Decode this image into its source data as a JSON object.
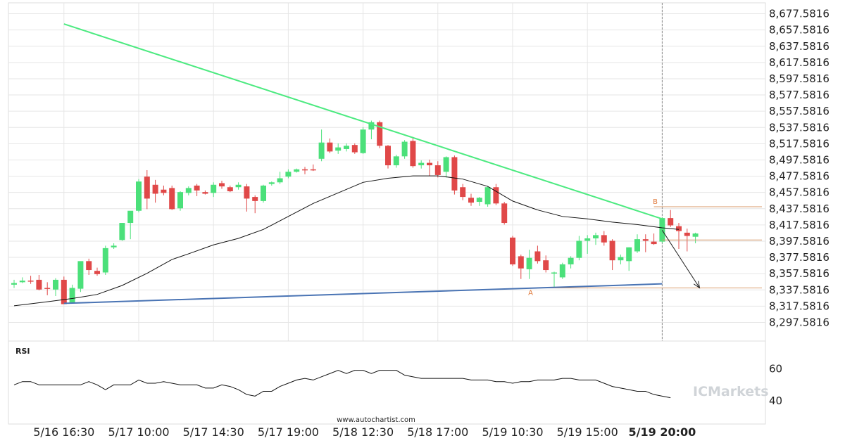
{
  "chart_data": {
    "type": "candlestick",
    "title": "",
    "watermark": "www.autochartist.com",
    "brand": "ICMarkets",
    "ylim": [
      8287.5816,
      8687.5816
    ],
    "y_ticks": [
      "8,677.5816",
      "8,657.5816",
      "8,637.5816",
      "8,617.5816",
      "8,597.5816",
      "8,577.5816",
      "8,557.5816",
      "8,537.5816",
      "8,517.5816",
      "8,497.5816",
      "8,477.5816",
      "8,457.5816",
      "8,437.5816",
      "8,417.5816",
      "8,397.5816",
      "8,377.5816",
      "8,357.5816",
      "8,337.5816",
      "8,317.5816",
      "8,297.5816"
    ],
    "y_tick_values": [
      8677.5816,
      8657.5816,
      8637.5816,
      8617.5816,
      8597.5816,
      8577.5816,
      8557.5816,
      8537.5816,
      8517.5816,
      8497.5816,
      8477.5816,
      8457.5816,
      8437.5816,
      8417.5816,
      8397.5816,
      8377.5816,
      8357.5816,
      8337.5816,
      8317.5816,
      8297.5816
    ],
    "x_ticks": [
      {
        "label": "5/16 16:30",
        "index": 6,
        "bold": false
      },
      {
        "label": "5/17 10:00",
        "index": 15,
        "bold": false
      },
      {
        "label": "5/17 14:30",
        "index": 24,
        "bold": false
      },
      {
        "label": "5/17 19:00",
        "index": 33,
        "bold": false
      },
      {
        "label": "5/18 12:30",
        "index": 42,
        "bold": false
      },
      {
        "label": "5/18 17:00",
        "index": 51,
        "bold": false
      },
      {
        "label": "5/19 10:30",
        "index": 60,
        "bold": false
      },
      {
        "label": "5/19 15:00",
        "index": 69,
        "bold": false
      },
      {
        "label": "5/19 20:00",
        "index": 78,
        "bold": true
      }
    ],
    "colors": {
      "up": "#4be07a",
      "down": "#e04848",
      "resistance": "#4cea80",
      "support": "#4a74b4",
      "level": "#d89a6a",
      "ma": "#111111",
      "rsi": "#111111",
      "grid": "#e6e6e6"
    },
    "candles": [
      [
        8344,
        8350,
        8340,
        8346
      ],
      [
        8347,
        8353,
        8346,
        8349
      ],
      [
        8349,
        8355,
        8345,
        8348
      ],
      [
        8350,
        8356,
        8337,
        8338
      ],
      [
        8340,
        8347,
        8331,
        8339
      ],
      [
        8338,
        8352,
        8330,
        8350
      ],
      [
        8350,
        8354,
        8320,
        8320
      ],
      [
        8322,
        8344,
        8321,
        8340
      ],
      [
        8339,
        8372,
        8335,
        8373
      ],
      [
        8373,
        8376,
        8356,
        8362
      ],
      [
        8361,
        8365,
        8355,
        8357
      ],
      [
        8359,
        8392,
        8356,
        8389
      ],
      [
        8390,
        8395,
        8388,
        8392
      ],
      [
        8399,
        8420,
        8398,
        8420
      ],
      [
        8420,
        8434,
        8400,
        8435
      ],
      [
        8435,
        8474,
        8433,
        8471
      ],
      [
        8477,
        8485,
        8437,
        8450
      ],
      [
        8467,
        8473,
        8445,
        8456
      ],
      [
        8461,
        8466,
        8454,
        8457
      ],
      [
        8463,
        8466,
        8436,
        8437
      ],
      [
        8438,
        8459,
        8435,
        8458
      ],
      [
        8457,
        8465,
        8454,
        8463
      ],
      [
        8466,
        8468,
        8453,
        8460
      ],
      [
        8458,
        8460,
        8455,
        8456
      ],
      [
        8457,
        8470,
        8452,
        8467
      ],
      [
        8469,
        8472,
        8462,
        8465
      ],
      [
        8464,
        8466,
        8458,
        8459
      ],
      [
        8464,
        8470,
        8461,
        8467
      ],
      [
        8465,
        8468,
        8434,
        8450
      ],
      [
        8452,
        8454,
        8432,
        8447
      ],
      [
        8447,
        8467,
        8445,
        8466
      ],
      [
        8468,
        8471,
        8466,
        8470
      ],
      [
        8470,
        8483,
        8468,
        8475
      ],
      [
        8477,
        8486,
        8475,
        8483
      ],
      [
        8483,
        8487,
        8482,
        8486
      ],
      [
        8486,
        8489,
        8480,
        8485
      ],
      [
        8486,
        8492,
        8484,
        8485
      ],
      [
        8499,
        8535,
        8496,
        8519
      ],
      [
        8519,
        8524,
        8506,
        8508
      ],
      [
        8509,
        8518,
        8505,
        8513
      ],
      [
        8511,
        8518,
        8508,
        8515
      ],
      [
        8516,
        8518,
        8505,
        8507
      ],
      [
        8506,
        8538,
        8505,
        8535
      ],
      [
        8535,
        8546,
        8523,
        8544
      ],
      [
        8544,
        8546,
        8512,
        8515
      ],
      [
        8515,
        8516,
        8487,
        8491
      ],
      [
        8491,
        8504,
        8488,
        8502
      ],
      [
        8502,
        8522,
        8499,
        8520
      ],
      [
        8521,
        8526,
        8488,
        8490
      ],
      [
        8491,
        8497,
        8487,
        8494
      ],
      [
        8494,
        8498,
        8478,
        8491
      ],
      [
        8491,
        8496,
        8476,
        8479
      ],
      [
        8483,
        8502,
        8476,
        8501
      ],
      [
        8501,
        8503,
        8455,
        8460
      ],
      [
        8464,
        8468,
        8448,
        8452
      ],
      [
        8451,
        8456,
        8441,
        8445
      ],
      [
        8446,
        8452,
        8441,
        8451
      ],
      [
        8443,
        8465,
        8440,
        8464
      ],
      [
        8464,
        8468,
        8442,
        8444
      ],
      [
        8444,
        8446,
        8418,
        8420
      ],
      [
        8402,
        8404,
        8367,
        8369
      ],
      [
        8379,
        8381,
        8351,
        8364
      ],
      [
        8363,
        8387,
        8351,
        8377
      ],
      [
        8385,
        8392,
        8370,
        8373
      ],
      [
        8374,
        8380,
        8359,
        8362
      ],
      [
        8359,
        8360,
        8340,
        8359
      ],
      [
        8353,
        8371,
        8351,
        8369
      ],
      [
        8369,
        8379,
        8364,
        8377
      ],
      [
        8377,
        8404,
        8374,
        8398
      ],
      [
        8398,
        8405,
        8382,
        8401
      ],
      [
        8401,
        8408,
        8393,
        8405
      ],
      [
        8405,
        8410,
        8392,
        8396
      ],
      [
        8398,
        8400,
        8362,
        8374
      ],
      [
        8374,
        8381,
        8369,
        8378
      ],
      [
        8373,
        8390,
        8361,
        8390
      ],
      [
        8385,
        8406,
        8383,
        8400
      ],
      [
        8400,
        8406,
        8384,
        8398
      ],
      [
        8397,
        8407,
        8393,
        8394
      ],
      [
        8397,
        8427,
        8395,
        8426
      ],
      [
        8426,
        8436,
        8415,
        8417
      ],
      [
        8416,
        8420,
        8388,
        8410
      ],
      [
        8408,
        8413,
        8385,
        8404
      ],
      [
        8403,
        8408,
        8395,
        8407
      ]
    ],
    "moving_average": [
      [
        0,
        8318
      ],
      [
        4,
        8323
      ],
      [
        7,
        8327
      ],
      [
        10,
        8332
      ],
      [
        13,
        8343
      ],
      [
        16,
        8358
      ],
      [
        19,
        8375
      ],
      [
        21,
        8382
      ],
      [
        24,
        8393
      ],
      [
        27,
        8401
      ],
      [
        30,
        8412
      ],
      [
        33,
        8428
      ],
      [
        36,
        8444
      ],
      [
        39,
        8457
      ],
      [
        42,
        8470
      ],
      [
        45,
        8475
      ],
      [
        48,
        8478
      ],
      [
        51,
        8478
      ],
      [
        54,
        8474
      ],
      [
        57,
        8465
      ],
      [
        60,
        8447
      ],
      [
        63,
        8436
      ],
      [
        66,
        8428
      ],
      [
        69,
        8425
      ],
      [
        72,
        8421
      ],
      [
        75,
        8418
      ],
      [
        78,
        8414
      ],
      [
        80,
        8412
      ]
    ],
    "resistance_line": {
      "from": [
        6,
        8665
      ],
      "to": [
        78,
        8425
      ]
    },
    "support_line": {
      "from": [
        6,
        8321
      ],
      "to": [
        78,
        8345
      ]
    },
    "forecast_arrow": {
      "from": [
        78,
        8411
      ],
      "to": [
        82.5,
        8340
      ]
    },
    "levels": [
      {
        "label": "B",
        "value": 8440,
        "start_index": 77
      },
      {
        "value": 8399,
        "start_index": 78
      },
      {
        "label": "A",
        "value": 8340,
        "start_index": 62
      }
    ],
    "rsi": {
      "label": "RSI",
      "ticks": [
        "60",
        "40"
      ],
      "tick_values": [
        60,
        40
      ],
      "ylim": [
        27,
        75
      ],
      "values": [
        50,
        52,
        52,
        50,
        50,
        50,
        50,
        50,
        50,
        52,
        50,
        47,
        50,
        50,
        50,
        53,
        51,
        51,
        52,
        51,
        50,
        50,
        50,
        48,
        48,
        50,
        49,
        47,
        44,
        43,
        46,
        46,
        49,
        51,
        53,
        54,
        53,
        55,
        57,
        59,
        57,
        59,
        59,
        57,
        59,
        59,
        59,
        56,
        55,
        54,
        54,
        54,
        54,
        54,
        54,
        53,
        53,
        53,
        52,
        52,
        51,
        52,
        52,
        53,
        53,
        53,
        54,
        54,
        53,
        53,
        53,
        51,
        49,
        48,
        47,
        46,
        46,
        44,
        43,
        42
      ]
    }
  }
}
